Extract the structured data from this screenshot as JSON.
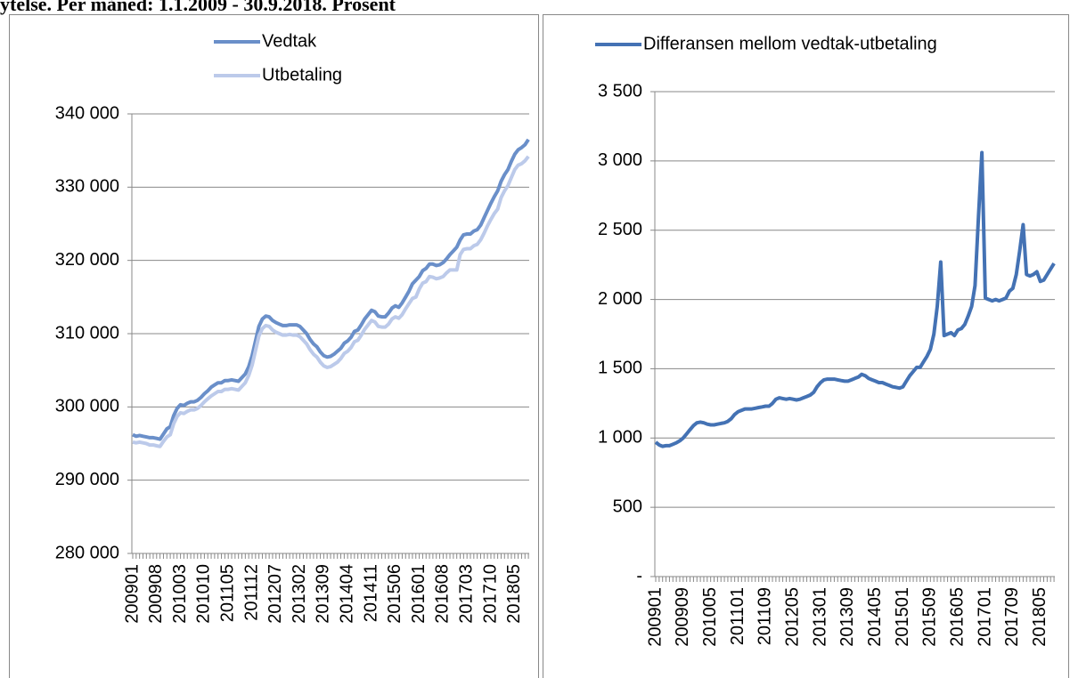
{
  "title": "ytelse. Per måned: 1.1.2009 - 30.9.2018. Prosent",
  "chart_data": [
    {
      "type": "line",
      "legend": "top",
      "categories": [
        "200901",
        null,
        null,
        null,
        null,
        null,
        null,
        "200908",
        null,
        null,
        null,
        null,
        null,
        null,
        "201003",
        null,
        null,
        null,
        null,
        null,
        null,
        "201010",
        null,
        null,
        null,
        null,
        null,
        null,
        "201105",
        null,
        null,
        null,
        null,
        null,
        null,
        "201112",
        null,
        null,
        null,
        null,
        null,
        null,
        "201207",
        null,
        null,
        null,
        null,
        null,
        null,
        "201302",
        null,
        null,
        null,
        null,
        null,
        null,
        "201309",
        null,
        null,
        null,
        null,
        null,
        null,
        "201404",
        null,
        null,
        null,
        null,
        null,
        null,
        "201411",
        null,
        null,
        null,
        null,
        null,
        null,
        "201506",
        null,
        null,
        null,
        null,
        null,
        null,
        "201601",
        null,
        null,
        null,
        null,
        null,
        null,
        "201608",
        null,
        null,
        null,
        null,
        null,
        null,
        "201703",
        null,
        null,
        null,
        null,
        null,
        null,
        "201710",
        null,
        null,
        null,
        null,
        null,
        null,
        "201805",
        null,
        null,
        null,
        null
      ],
      "series": [
        {
          "name": "Vedtak",
          "color": "#6a8fc9",
          "values": [
            296200,
            296000,
            296100,
            296000,
            295900,
            295800,
            295800,
            295700,
            295600,
            296300,
            297000,
            297300,
            298800,
            299800,
            300300,
            300200,
            300500,
            300700,
            300700,
            300900,
            301300,
            301800,
            302200,
            302700,
            303000,
            303300,
            303300,
            303600,
            303600,
            303700,
            303600,
            303500,
            304000,
            304500,
            305500,
            307000,
            309000,
            311000,
            312000,
            312400,
            312300,
            311800,
            311500,
            311300,
            311100,
            311100,
            311200,
            311200,
            311200,
            311000,
            310500,
            310000,
            309200,
            308600,
            308200,
            307500,
            307000,
            306800,
            306900,
            307200,
            307600,
            308000,
            308700,
            309000,
            309500,
            310300,
            310500,
            311200,
            312000,
            312600,
            313200,
            313000,
            312400,
            312300,
            312300,
            312800,
            313500,
            313800,
            313600,
            314200,
            315000,
            315800,
            316800,
            317300,
            317800,
            318600,
            318900,
            319500,
            319500,
            319300,
            319400,
            319700,
            320200,
            320800,
            321300,
            321800,
            322800,
            323500,
            323600,
            323600,
            324000,
            324200,
            324800,
            325800,
            326800,
            327800,
            328700,
            329500,
            330800,
            331700,
            332400,
            333500,
            334500,
            335100,
            335400,
            335800,
            336500
          ]
        },
        {
          "name": "Utbetaling",
          "color": "#bccaea",
          "values": [
            295200,
            295100,
            295200,
            295100,
            295000,
            294800,
            294800,
            294700,
            294600,
            295300,
            295900,
            296200,
            297700,
            298700,
            299200,
            299100,
            299400,
            299600,
            299600,
            299800,
            300200,
            300700,
            301100,
            301500,
            301800,
            302100,
            302100,
            302400,
            302400,
            302500,
            302400,
            302300,
            302800,
            303300,
            304300,
            305700,
            307700,
            309700,
            310700,
            311100,
            311000,
            310500,
            310200,
            310000,
            309800,
            309800,
            309900,
            309800,
            309800,
            309600,
            309100,
            308600,
            307800,
            307200,
            306800,
            306100,
            305600,
            305400,
            305500,
            305800,
            306100,
            306600,
            307300,
            307600,
            308100,
            308900,
            309100,
            309800,
            310600,
            311200,
            311800,
            311600,
            311000,
            310900,
            310900,
            311300,
            312000,
            312300,
            312100,
            312600,
            313400,
            314100,
            314800,
            315000,
            316100,
            316900,
            317100,
            317800,
            317700,
            317500,
            317600,
            317800,
            318300,
            318700,
            318700,
            318700,
            320800,
            321500,
            321600,
            321600,
            322000,
            322200,
            322800,
            323700,
            324700,
            325600,
            326400,
            327000,
            328600,
            329500,
            330200,
            331300,
            332400,
            333000,
            333200,
            333600,
            334200
          ]
        }
      ],
      "ylim": [
        280000,
        340000
      ],
      "yticks": [
        {
          "value": 280000,
          "label": "280 000"
        },
        {
          "value": 290000,
          "label": "290 000"
        },
        {
          "value": 300000,
          "label": "300 000"
        },
        {
          "value": 310000,
          "label": "310 000"
        },
        {
          "value": 320000,
          "label": "320 000"
        },
        {
          "value": 330000,
          "label": "330 000"
        },
        {
          "value": 340000,
          "label": "340 000"
        }
      ],
      "grid": true
    },
    {
      "type": "line",
      "legend": "top",
      "categories": [
        "200901",
        null,
        null,
        null,
        null,
        null,
        null,
        null,
        "200909",
        null,
        null,
        null,
        null,
        null,
        null,
        null,
        "201005",
        null,
        null,
        null,
        null,
        null,
        null,
        null,
        "201101",
        null,
        null,
        null,
        null,
        null,
        null,
        null,
        "201109",
        null,
        null,
        null,
        null,
        null,
        null,
        null,
        "201205",
        null,
        null,
        null,
        null,
        null,
        null,
        null,
        "201301",
        null,
        null,
        null,
        null,
        null,
        null,
        null,
        "201309",
        null,
        null,
        null,
        null,
        null,
        null,
        null,
        "201405",
        null,
        null,
        null,
        null,
        null,
        null,
        null,
        "201501",
        null,
        null,
        null,
        null,
        null,
        null,
        null,
        "201509",
        null,
        null,
        null,
        null,
        null,
        null,
        null,
        "201605",
        null,
        null,
        null,
        null,
        null,
        null,
        null,
        "201701",
        null,
        null,
        null,
        null,
        null,
        null,
        null,
        "201709",
        null,
        null,
        null,
        null,
        null,
        null,
        null,
        "201805",
        null,
        null,
        null,
        null
      ],
      "series": [
        {
          "name": "Differansen mellom vedtak-utbetaling",
          "color": "#4472b4",
          "values": [
            970,
            950,
            940,
            945,
            945,
            955,
            965,
            980,
            1000,
            1030,
            1060,
            1090,
            1110,
            1115,
            1110,
            1100,
            1095,
            1095,
            1100,
            1105,
            1110,
            1120,
            1140,
            1170,
            1190,
            1200,
            1210,
            1210,
            1210,
            1215,
            1220,
            1225,
            1230,
            1230,
            1250,
            1280,
            1290,
            1285,
            1280,
            1285,
            1280,
            1275,
            1280,
            1290,
            1300,
            1310,
            1330,
            1370,
            1400,
            1420,
            1425,
            1425,
            1425,
            1420,
            1415,
            1410,
            1410,
            1420,
            1430,
            1440,
            1460,
            1450,
            1430,
            1420,
            1410,
            1400,
            1400,
            1390,
            1380,
            1370,
            1365,
            1360,
            1370,
            1410,
            1450,
            1480,
            1510,
            1510,
            1550,
            1590,
            1640,
            1750,
            1950,
            2270,
            1740,
            1750,
            1760,
            1740,
            1780,
            1790,
            1820,
            1880,
            1950,
            2100,
            2600,
            3060,
            2010,
            2000,
            1990,
            2000,
            1990,
            2000,
            2010,
            2060,
            2080,
            2180,
            2350,
            2540,
            2180,
            2170,
            2180,
            2200,
            2130,
            2140,
            2180,
            2220,
            2260
          ]
        }
      ],
      "ylim": [
        0,
        3500
      ],
      "yticks": [
        {
          "value": 0,
          "label": "-"
        },
        500,
        {
          "value": 1000,
          "label": "1 000"
        },
        {
          "value": 1500,
          "label": "1 500"
        },
        {
          "value": 2000,
          "label": "2 000"
        },
        {
          "value": 2500,
          "label": "2 500"
        },
        {
          "value": 3000,
          "label": "3 000"
        },
        {
          "value": 3500,
          "label": "3 500"
        }
      ],
      "grid": true
    }
  ]
}
